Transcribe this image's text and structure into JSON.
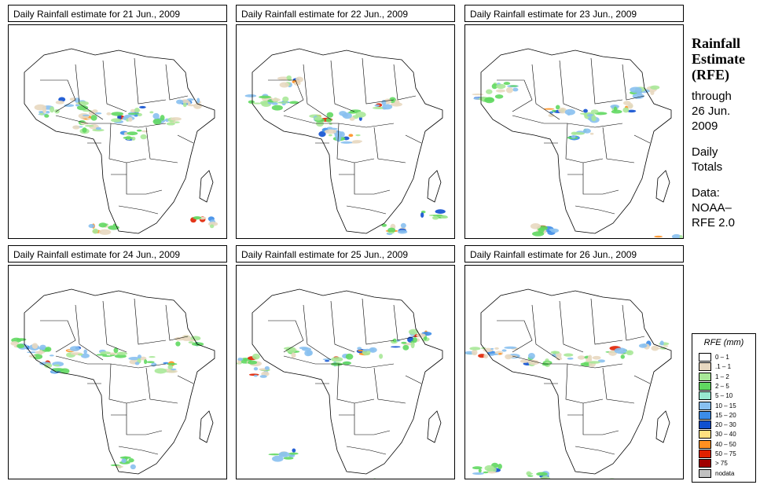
{
  "panels": [
    {
      "title": "Daily Rainfall estimate for  21 Jun., 2009"
    },
    {
      "title": "Daily Rainfall estimate for  22 Jun., 2009"
    },
    {
      "title": "Daily Rainfall estimate for  23 Jun., 2009"
    },
    {
      "title": "Daily Rainfall estimate for  24 Jun., 2009"
    },
    {
      "title": "Daily Rainfall estimate for  25 Jun., 2009"
    },
    {
      "title": "Daily Rainfall estimate for  26 Jun., 2009"
    }
  ],
  "side": {
    "heading_line1": "Rainfall",
    "heading_line2": "Estimate",
    "heading_line3": "(RFE)",
    "through": "through",
    "date_line1": "26 Jun.",
    "date_line2": "2009",
    "daily": "Daily",
    "totals": "Totals",
    "data_label": "Data:",
    "source_line1": "NOAA–",
    "source_line2": "RFE 2.0"
  },
  "legend": {
    "title": "RFE (mm)",
    "items": [
      {
        "label": "0 – 1",
        "color": "#ffffff"
      },
      {
        "label": ".1 – 1",
        "color": "#e8d8c0"
      },
      {
        "label": "1 – 2",
        "color": "#a8e898"
      },
      {
        "label": "2 – 5",
        "color": "#60d860"
      },
      {
        "label": "5 – 10",
        "color": "#98e8d0"
      },
      {
        "label": "10 – 15",
        "color": "#88c0f0"
      },
      {
        "label": "15 – 20",
        "color": "#3c8ce8"
      },
      {
        "label": "20 – 30",
        "color": "#1050d0"
      },
      {
        "label": "30 – 40",
        "color": "#ffe080"
      },
      {
        "label": "40 – 50",
        "color": "#ff9020"
      },
      {
        "label": "50 – 75",
        "color": "#e02000"
      },
      {
        "label": "> 75",
        "color": "#a00000"
      },
      {
        "label": "nodata",
        "color": "#c0c0c0"
      }
    ]
  }
}
